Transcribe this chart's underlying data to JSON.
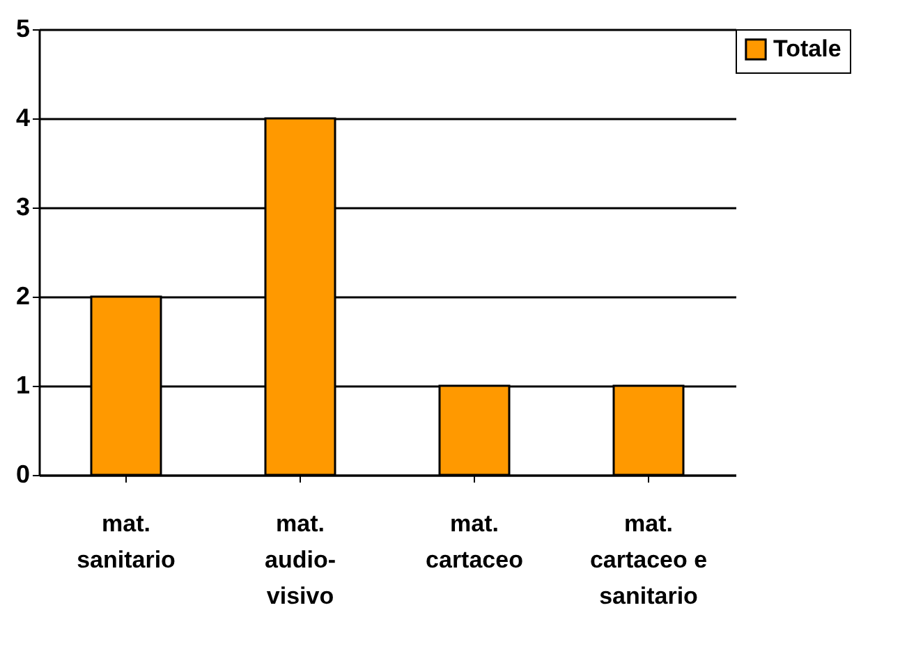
{
  "chart_data": {
    "type": "bar",
    "categories": [
      "mat. sanitario",
      "mat. audio-visivo",
      "mat. cartaceo",
      "mat. cartaceo e sanitario"
    ],
    "series": [
      {
        "name": "Totale",
        "color": "#ff9900",
        "values": [
          2,
          4,
          1,
          1
        ]
      }
    ],
    "ylim": [
      0,
      5
    ],
    "yticks": [
      0,
      1,
      2,
      3,
      4,
      5
    ],
    "grid": "y",
    "legend": "right"
  }
}
